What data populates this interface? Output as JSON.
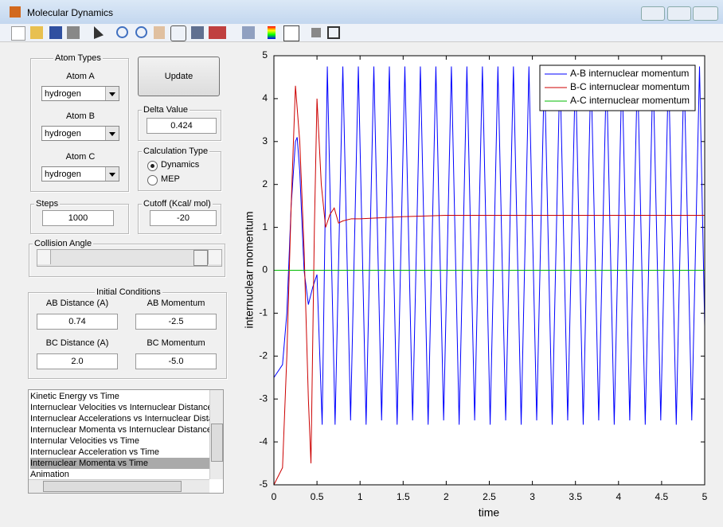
{
  "window": {
    "title": "Molecular Dynamics"
  },
  "atom_types": {
    "title": "Atom Types",
    "atoms": [
      {
        "label": "Atom A",
        "value": "hydrogen"
      },
      {
        "label": "Atom B",
        "value": "hydrogen"
      },
      {
        "label": "Atom C",
        "value": "hydrogen"
      }
    ]
  },
  "update_button": "Update",
  "delta": {
    "title": "Delta Value",
    "value": "0.424"
  },
  "calc_type": {
    "title": "Calculation Type",
    "options": [
      "Dynamics",
      "MEP"
    ],
    "selected": 0
  },
  "steps": {
    "title": "Steps",
    "value": "1000"
  },
  "cutoff": {
    "title": "Cutoff (Kcal/ mol)",
    "value": "-20"
  },
  "collision_angle": {
    "title": "Collision Angle"
  },
  "initial_conditions": {
    "title": "Initial Conditions",
    "fields": [
      {
        "label": "AB Distance (A)",
        "value": "0.74"
      },
      {
        "label": "AB Momentum",
        "value": "-2.5"
      },
      {
        "label": "BC Distance (A)",
        "value": "2.0"
      },
      {
        "label": "BC Momentum",
        "value": "-5.0"
      }
    ]
  },
  "plot_list": {
    "items": [
      "Kinetic Energy vs Time",
      "Internuclear Velocities vs Internuclear Distance",
      "Internuclear Accelerations vs Internuclear Dista",
      "Internuclear Momenta vs Internuclear Distance",
      "Internular Velocities vs Time",
      "Internuclear Acceleration vs Time",
      "Internuclear Momenta vs Time",
      "Animation"
    ],
    "selected": 6
  },
  "chart_data": {
    "type": "line",
    "x_label": "time",
    "y_label": "internuclear momentum",
    "xlim": [
      0,
      5
    ],
    "ylim": [
      -5,
      5
    ],
    "xticks": [
      0,
      0.5,
      1,
      1.5,
      2,
      2.5,
      3,
      3.5,
      4,
      4.5,
      5
    ],
    "yticks": [
      -5,
      -4,
      -3,
      -2,
      -1,
      0,
      1,
      2,
      3,
      4,
      5
    ],
    "grid": false,
    "legend": "top-right",
    "series": [
      {
        "name": "A-B internuclear momentum",
        "color": "#0000ff",
        "x": [
          0,
          0.1,
          0.15,
          0.2,
          0.25,
          0.27,
          0.3,
          0.35,
          0.4,
          0.45,
          0.5,
          0.56,
          0.62,
          0.71,
          0.8,
          0.89,
          0.98,
          1.07,
          1.16,
          1.25,
          1.34,
          1.43,
          1.52,
          1.61,
          1.7,
          1.79,
          1.88,
          1.97,
          2.06,
          2.15,
          2.24,
          2.33,
          2.42,
          2.51,
          2.6,
          2.69,
          2.78,
          2.87,
          2.96,
          3.05,
          3.14,
          3.23,
          3.32,
          3.41,
          3.5,
          3.59,
          3.68,
          3.77,
          3.86,
          3.95,
          4.04,
          4.13,
          4.22,
          4.31,
          4.4,
          4.49,
          4.58,
          4.67,
          4.76,
          4.85,
          4.94,
          5
        ],
        "values": [
          -2.5,
          -2.2,
          -1.0,
          1.5,
          3.0,
          3.1,
          2.3,
          0.0,
          -0.8,
          -0.4,
          -0.1,
          -3.6,
          4.75,
          -3.6,
          4.75,
          -3.5,
          4.75,
          -3.6,
          4.75,
          -3.5,
          4.75,
          -3.6,
          4.75,
          -3.5,
          4.75,
          -3.6,
          4.75,
          -3.5,
          4.75,
          -3.6,
          4.75,
          -3.5,
          4.75,
          -3.6,
          4.75,
          -3.5,
          4.75,
          -3.6,
          4.75,
          -3.5,
          4.75,
          -3.6,
          4.75,
          -3.5,
          4.75,
          -3.6,
          4.75,
          -3.5,
          4.75,
          -3.6,
          4.75,
          -3.5,
          4.75,
          -3.6,
          4.75,
          -3.5,
          4.75,
          -3.6,
          4.75,
          -3.5,
          4.75,
          -1.3
        ]
      },
      {
        "name": "B-C internuclear momentum",
        "color": "#cc0000",
        "x": [
          0,
          0.1,
          0.15,
          0.2,
          0.25,
          0.3,
          0.35,
          0.4,
          0.43,
          0.47,
          0.5,
          0.55,
          0.6,
          0.65,
          0.7,
          0.75,
          0.8,
          0.9,
          1.0,
          1.5,
          2,
          5
        ],
        "values": [
          -5,
          -4.6,
          -2.0,
          1.5,
          4.3,
          3.0,
          0.5,
          -3.0,
          -4.5,
          1.0,
          4.0,
          2.0,
          1.0,
          1.3,
          1.45,
          1.1,
          1.15,
          1.2,
          1.2,
          1.25,
          1.28,
          1.28
        ]
      },
      {
        "name": "A-C internuclear momentum",
        "color": "#00bb00",
        "x": [
          0,
          5
        ],
        "values": [
          0,
          0
        ]
      }
    ]
  }
}
